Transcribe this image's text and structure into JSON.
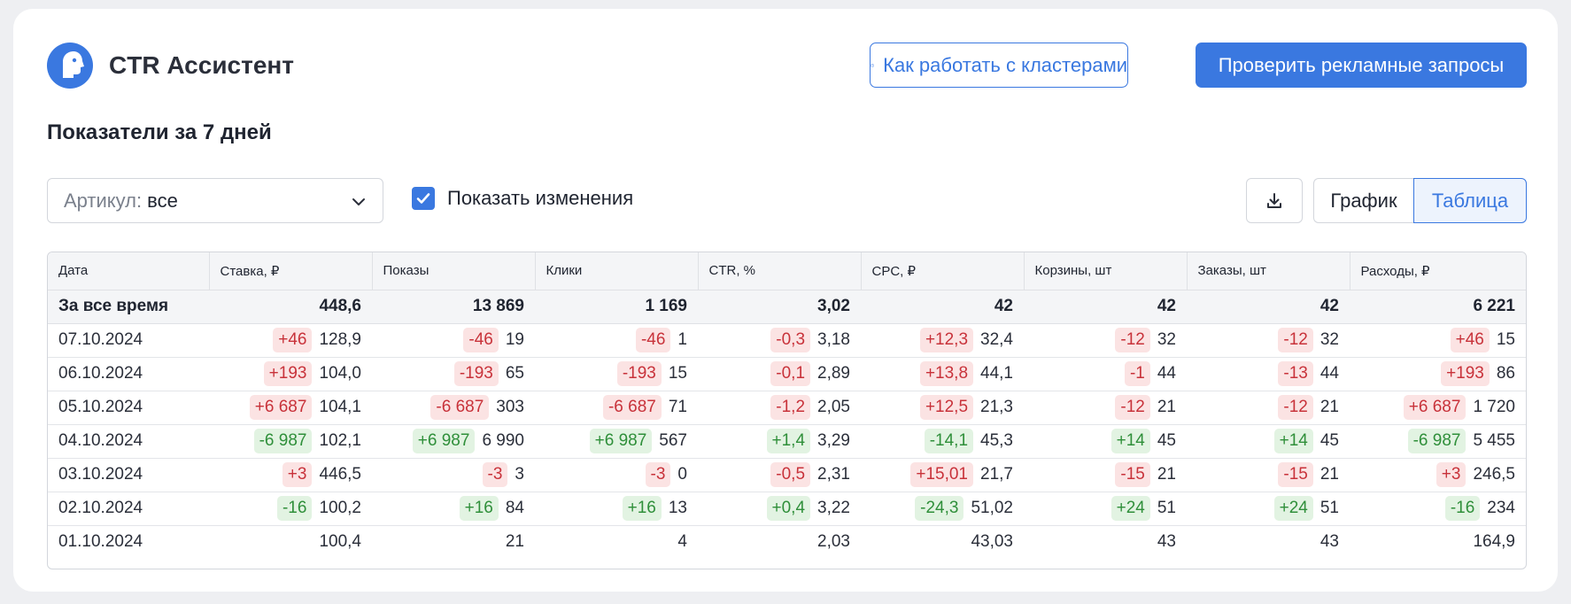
{
  "header": {
    "title": "CTR Ассистент",
    "help_button": "Как работать с кластерами",
    "primary_button": "Проверить рекламные запросы"
  },
  "section": {
    "title": "Показатели за 7 дней"
  },
  "filters": {
    "article_label": "Артикул:",
    "article_value": "все",
    "show_changes_label": "Показать изменения",
    "show_changes_checked": true
  },
  "view_toggle": {
    "chart": "График",
    "table": "Таблица",
    "selected": "table"
  },
  "colors": {
    "accent": "#3a78e0",
    "negative": "#c8323a",
    "positive": "#2f8f3a"
  },
  "table": {
    "columns": [
      "Дата",
      "Ставка, ₽",
      "Показы",
      "Клики",
      "CTR, %",
      "CPC, ₽",
      "Корзины, шт",
      "Заказы, шт",
      "Расходы, ₽"
    ],
    "total": {
      "label": "За все время",
      "values": [
        "448,6",
        "13 869",
        "1 169",
        "3,02",
        "42",
        "42",
        "42",
        "6 221"
      ]
    },
    "rows": [
      {
        "date": "07.10.2024",
        "cells": [
          {
            "change": "+46",
            "dir": "neg",
            "value": "128,9"
          },
          {
            "change": "-46",
            "dir": "neg",
            "value": "19"
          },
          {
            "change": "-46",
            "dir": "neg",
            "value": "1"
          },
          {
            "change": "-0,3",
            "dir": "neg",
            "value": "3,18"
          },
          {
            "change": "+12,3",
            "dir": "neg",
            "value": "32,4"
          },
          {
            "change": "-12",
            "dir": "neg",
            "value": "32"
          },
          {
            "change": "-12",
            "dir": "neg",
            "value": "32"
          },
          {
            "change": "+46",
            "dir": "neg",
            "value": "15"
          }
        ]
      },
      {
        "date": "06.10.2024",
        "cells": [
          {
            "change": "+193",
            "dir": "neg",
            "value": "104,0"
          },
          {
            "change": "-193",
            "dir": "neg",
            "value": "65"
          },
          {
            "change": "-193",
            "dir": "neg",
            "value": "15"
          },
          {
            "change": "-0,1",
            "dir": "neg",
            "value": "2,89"
          },
          {
            "change": "+13,8",
            "dir": "neg",
            "value": "44,1"
          },
          {
            "change": "-1",
            "dir": "neg",
            "value": "44"
          },
          {
            "change": "-13",
            "dir": "neg",
            "value": "44"
          },
          {
            "change": "+193",
            "dir": "neg",
            "value": "86"
          }
        ]
      },
      {
        "date": "05.10.2024",
        "cells": [
          {
            "change": "+6 687",
            "dir": "neg",
            "value": "104,1"
          },
          {
            "change": "-6 687",
            "dir": "neg",
            "value": "303"
          },
          {
            "change": "-6 687",
            "dir": "neg",
            "value": "71"
          },
          {
            "change": "-1,2",
            "dir": "neg",
            "value": "2,05"
          },
          {
            "change": "+12,5",
            "dir": "neg",
            "value": "21,3"
          },
          {
            "change": "-12",
            "dir": "neg",
            "value": "21"
          },
          {
            "change": "-12",
            "dir": "neg",
            "value": "21"
          },
          {
            "change": "+6 687",
            "dir": "neg",
            "value": "1 720"
          }
        ]
      },
      {
        "date": "04.10.2024",
        "cells": [
          {
            "change": "-6 987",
            "dir": "pos",
            "value": "102,1"
          },
          {
            "change": "+6 987",
            "dir": "pos",
            "value": "6 990"
          },
          {
            "change": "+6 987",
            "dir": "pos",
            "value": "567"
          },
          {
            "change": "+1,4",
            "dir": "pos",
            "value": "3,29"
          },
          {
            "change": "-14,1",
            "dir": "pos",
            "value": "45,3"
          },
          {
            "change": "+14",
            "dir": "pos",
            "value": "45"
          },
          {
            "change": "+14",
            "dir": "pos",
            "value": "45"
          },
          {
            "change": "-6 987",
            "dir": "pos",
            "value": "5 455"
          }
        ]
      },
      {
        "date": "03.10.2024",
        "cells": [
          {
            "change": "+3",
            "dir": "neg",
            "value": "446,5"
          },
          {
            "change": "-3",
            "dir": "neg",
            "value": "3"
          },
          {
            "change": "-3",
            "dir": "neg",
            "value": "0"
          },
          {
            "change": "-0,5",
            "dir": "neg",
            "value": "2,31"
          },
          {
            "change": "+15,01",
            "dir": "neg",
            "value": "21,7"
          },
          {
            "change": "-15",
            "dir": "neg",
            "value": "21"
          },
          {
            "change": "-15",
            "dir": "neg",
            "value": "21"
          },
          {
            "change": "+3",
            "dir": "neg",
            "value": "246,5"
          }
        ]
      },
      {
        "date": "02.10.2024",
        "cells": [
          {
            "change": "-16",
            "dir": "pos",
            "value": "100,2"
          },
          {
            "change": "+16",
            "dir": "pos",
            "value": "84"
          },
          {
            "change": "+16",
            "dir": "pos",
            "value": "13"
          },
          {
            "change": "+0,4",
            "dir": "pos",
            "value": "3,22"
          },
          {
            "change": "-24,3",
            "dir": "pos",
            "value": "51,02"
          },
          {
            "change": "+24",
            "dir": "pos",
            "value": "51"
          },
          {
            "change": "+24",
            "dir": "pos",
            "value": "51"
          },
          {
            "change": "-16",
            "dir": "pos",
            "value": "234"
          }
        ]
      },
      {
        "date": "01.10.2024",
        "cells": [
          {
            "change": "",
            "dir": "",
            "value": "100,4"
          },
          {
            "change": "",
            "dir": "",
            "value": "21"
          },
          {
            "change": "",
            "dir": "",
            "value": "4"
          },
          {
            "change": "",
            "dir": "",
            "value": "2,03"
          },
          {
            "change": "",
            "dir": "",
            "value": "43,03"
          },
          {
            "change": "",
            "dir": "",
            "value": "43"
          },
          {
            "change": "",
            "dir": "",
            "value": "43"
          },
          {
            "change": "",
            "dir": "",
            "value": "164,9"
          }
        ]
      }
    ]
  }
}
